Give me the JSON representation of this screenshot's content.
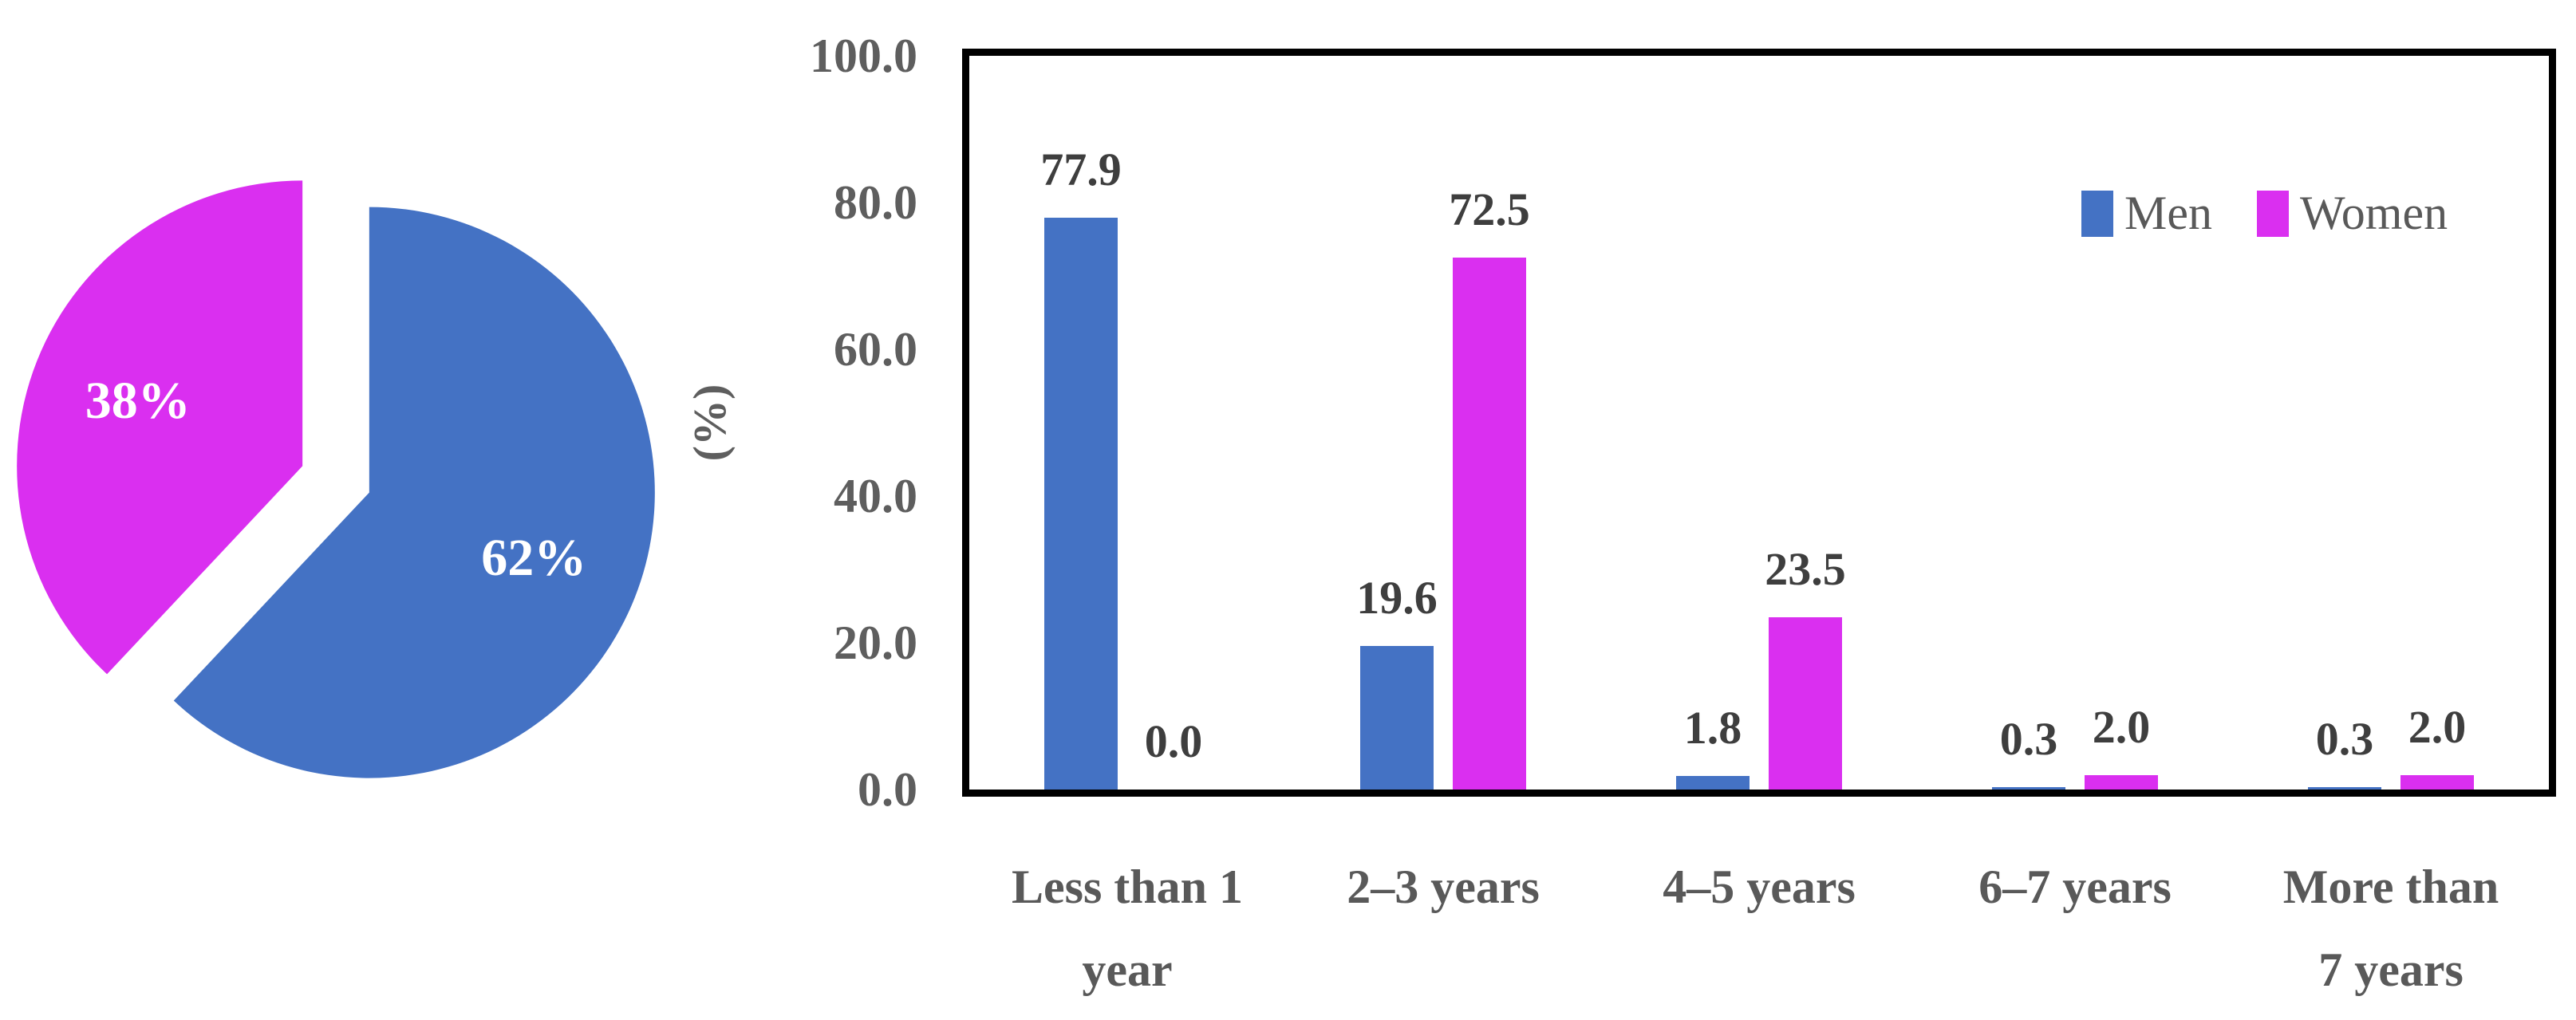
{
  "figure": {
    "background": "#ffffff"
  },
  "colors": {
    "men_blue": "#4472C4",
    "women_magenta": "#DA2FF0",
    "axis_text": "#5e5e5e",
    "data_label_text": "#3e3e3e",
    "pie_label_text": "#ffffff",
    "frame": "#000000"
  },
  "chart_data": [
    {
      "type": "pie",
      "slices": [
        {
          "label": "Men",
          "value": 62,
          "display": "62%",
          "color": "#4472C4"
        },
        {
          "label": "Women",
          "value": 38,
          "display": "38%",
          "color": "#DA2FF0"
        }
      ],
      "start_angle_deg": 0,
      "direction": "clockwise",
      "exploded": true
    },
    {
      "type": "bar",
      "categories": [
        "Less than 1\nyear",
        "2–3 years",
        "4–5 years",
        "6–7 years",
        "More than\n7 years"
      ],
      "series": [
        {
          "name": "Men",
          "color": "#4472C4",
          "values": [
            77.9,
            19.6,
            1.8,
            0.3,
            0.3
          ]
        },
        {
          "name": "Women",
          "color": "#DA2FF0",
          "values": [
            0.0,
            72.5,
            23.5,
            2.0,
            2.0
          ]
        }
      ],
      "data_labels": [
        [
          "77.9",
          "19.6",
          "1.8",
          "0.3",
          "0.3"
        ],
        [
          "0.0",
          "72.5",
          "23.5",
          "2.0",
          "2.0"
        ]
      ],
      "ylabel": "(%)",
      "ylim": [
        0,
        100
      ],
      "ytick_labels": [
        "100.0",
        "80.0",
        "60.0",
        "40.0",
        "20.0",
        "0.0"
      ],
      "grid": false,
      "legend": {
        "position": "top-right-inside",
        "items": [
          "Men",
          "Women"
        ]
      }
    }
  ]
}
